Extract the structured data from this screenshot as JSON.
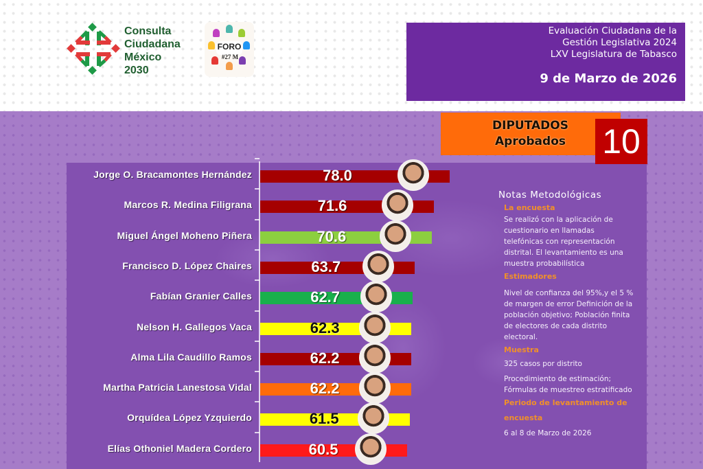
{
  "header": {
    "logo_main": {
      "icon": "consulta-ciudadana-logo",
      "lines": [
        "Consulta",
        "Ciudadana",
        "México",
        "2030"
      ]
    },
    "logo_secondary": {
      "icon": "foro-logo",
      "label": "FORO",
      "sublabel": "#27 M"
    },
    "title_box": {
      "lines": [
        "Evaluación Ciudadana de la",
        "Gestión Legislativa 2024",
        "LXV Legislatura de Tabasco"
      ],
      "date": "9 de Marzo de 2026"
    }
  },
  "banner": {
    "line1": "DIPUTADOS",
    "line2": "Aprobados",
    "count": "10"
  },
  "notes": {
    "title": "Notas Metodológicas",
    "sections": [
      {
        "heading": "La encuesta",
        "paragraphs": [
          "Se realizó con la aplicación de cuestionario en  llamadas telefónicas con representación distrital. El levantamiento es una muestra probabilística"
        ]
      },
      {
        "heading": "Estimadores",
        "paragraphs": [
          "Nivel de confianza del 95%,y el 5 % de margen de error Definición de la población objetivo; Población finita de electores de cada distrito electoral."
        ]
      },
      {
        "heading": "Muestra",
        "paragraphs": [
          "325 casos por distrito",
          "Procedimiento de estimación; Fórmulas de muestreo estratificado"
        ]
      },
      {
        "heading": "Periodo de levantamiento de encuesta",
        "paragraphs": [
          "6 al 8  de Marzo de 2026"
        ]
      }
    ]
  },
  "colors": {
    "header_purple": "#6d2aa0",
    "background_purple": "#a67cc8",
    "panel_purple": "#8350b0",
    "banner_orange": "#ff6b0a",
    "count_red": "#c00000",
    "dark_red": "#a50000",
    "light_green": "#8ccf3f",
    "green": "#19b04c",
    "yellow": "#ffff00",
    "orange": "#ff6b0a",
    "red": "#ff1a1a"
  },
  "chart_data": {
    "type": "bar",
    "orientation": "horizontal",
    "title": "DIPUTADOS Aprobados",
    "xlabel": "",
    "ylabel": "",
    "grid": false,
    "legend": null,
    "categories": [
      "Jorge O. Bracamontes Hernández",
      "Marcos R. Medina Filigrana",
      "Miguel Ángel Moheno Piñera",
      "Francisco D. López Chaires",
      "Fabían Granier Calles",
      "Nelson H. Gallegos Vaca",
      "Alma Lila Caudillo Ramos",
      "Martha Patricia Lanestosa Vidal",
      "Orquídea López Yzquierdo",
      "Elías Othoniel Madera Cordero"
    ],
    "values": [
      78.0,
      71.6,
      70.6,
      63.7,
      62.7,
      62.3,
      62.2,
      62.2,
      61.5,
      60.5
    ],
    "value_labels": [
      "78.0",
      "71.6",
      "70.6",
      "63.7",
      "62.7",
      "62.3",
      "62.2",
      "62.2",
      "61.5",
      "60.5"
    ],
    "bar_colors": [
      "#a50000",
      "#a50000",
      "#8ccf3f",
      "#a50000",
      "#19b04c",
      "#ffff00",
      "#a50000",
      "#ff6b0a",
      "#ffff00",
      "#ff1a1a"
    ],
    "label_colors": [
      "#ffffff",
      "#ffffff",
      "#ffffff",
      "#ffffff",
      "#ffffff",
      "#111111",
      "#ffffff",
      "#ffffff",
      "#111111",
      "#ffffff"
    ]
  }
}
